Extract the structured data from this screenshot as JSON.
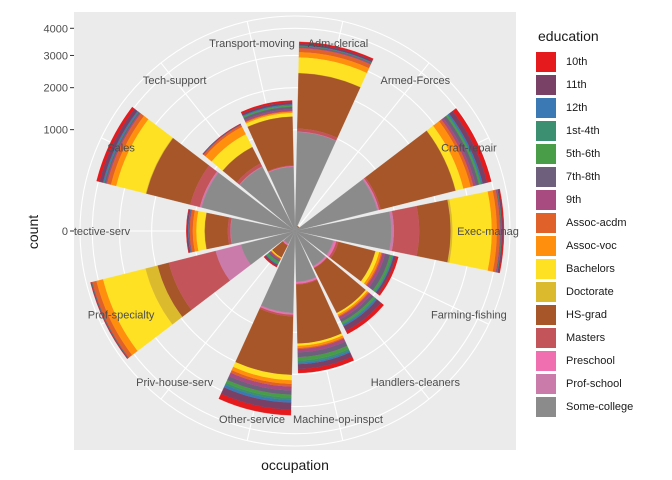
{
  "chart_data": {
    "type": "bar",
    "coord": "polar",
    "position": "stacked",
    "xlabel": "occupation",
    "ylabel": "count",
    "legend_title": "education",
    "legend_position": "right",
    "ylim": [
      0,
      4500
    ],
    "y_ticks": [
      0,
      1000,
      2000,
      3000,
      4000
    ],
    "grid": true,
    "categories": [
      "Adm-clerical",
      "Armed-Forces",
      "Craft-repair",
      "Exec-managerial",
      "Farming-fishing",
      "Handlers-cleaners",
      "Machine-op-inspct",
      "Other-service",
      "Priv-house-serv",
      "Prof-specialty",
      "Protective-serv",
      "Sales",
      "Tech-support",
      "Transport-moving"
    ],
    "category_labels": [
      "Adm-clerical",
      "Armed-Forces",
      "Craft-repair",
      "Exec-manag",
      "Farming-fishing",
      "Handlers-cleaners",
      "Machine-op-inspct",
      "Other-service",
      "Priv-house-serv",
      "Prof-specialty",
      "tective-serv",
      "Sales",
      "Tech-support",
      "Transport-moving"
    ],
    "series": [
      {
        "name": "10th",
        "color": "#E41A1C",
        "values": [
          70,
          0,
          170,
          50,
          50,
          80,
          110,
          200,
          10,
          20,
          15,
          120,
          10,
          50
        ]
      },
      {
        "name": "11th",
        "color": "#7A4166",
        "values": [
          70,
          0,
          175,
          45,
          50,
          110,
          130,
          240,
          10,
          25,
          25,
          140,
          10,
          50
        ]
      },
      {
        "name": "12th",
        "color": "#3A79B4",
        "values": [
          20,
          0,
          55,
          10,
          15,
          35,
          40,
          90,
          5,
          5,
          10,
          45,
          5,
          20
        ]
      },
      {
        "name": "1st-4th",
        "color": "#3C8F70",
        "values": [
          5,
          0,
          30,
          5,
          20,
          20,
          50,
          70,
          5,
          5,
          0,
          5,
          0,
          15
        ]
      },
      {
        "name": "5th-6th",
        "color": "#4A9D48",
        "values": [
          10,
          0,
          60,
          10,
          40,
          40,
          90,
          100,
          15,
          5,
          0,
          10,
          0,
          25
        ]
      },
      {
        "name": "7th-8th",
        "color": "#6E5F7C",
        "values": [
          30,
          0,
          120,
          30,
          90,
          60,
          110,
          130,
          10,
          10,
          15,
          60,
          5,
          60
        ]
      },
      {
        "name": "9th",
        "color": "#A74B81",
        "values": [
          30,
          0,
          90,
          20,
          50,
          50,
          80,
          120,
          10,
          10,
          10,
          40,
          5,
          40
        ]
      },
      {
        "name": "Assoc-acdm",
        "color": "#E0612A",
        "values": [
          140,
          0,
          100,
          120,
          20,
          20,
          25,
          80,
          0,
          170,
          60,
          150,
          50,
          15
        ]
      },
      {
        "name": "Assoc-voc",
        "color": "#FF8F0C",
        "values": [
          180,
          0,
          260,
          200,
          40,
          30,
          50,
          110,
          5,
          270,
          70,
          200,
          180,
          30
        ]
      },
      {
        "name": "Bachelors",
        "color": "#FEE123",
        "values": [
          500,
          0,
          260,
          1350,
          60,
          30,
          50,
          150,
          5,
          1500,
          150,
          1000,
          280,
          80
        ]
      },
      {
        "name": "Doctorate",
        "color": "#DBBA2E",
        "values": [
          10,
          0,
          10,
          60,
          5,
          5,
          0,
          5,
          0,
          360,
          5,
          20,
          5,
          5
        ]
      },
      {
        "name": "HS-grad",
        "color": "#A65628",
        "values": [
          1400,
          1,
          1900,
          850,
          470,
          650,
          950,
          1300,
          60,
          300,
          350,
          1150,
          300,
          850
        ]
      },
      {
        "name": "Masters",
        "color": "#C3555A",
        "values": [
          60,
          0,
          30,
          550,
          20,
          5,
          10,
          30,
          0,
          1000,
          35,
          200,
          50,
          10
        ]
      },
      {
        "name": "Preschool",
        "color": "#EF6FB0",
        "values": [
          5,
          0,
          10,
          0,
          15,
          10,
          15,
          20,
          5,
          0,
          0,
          5,
          0,
          5
        ]
      },
      {
        "name": "Prof-school",
        "color": "#CA7BAA",
        "values": [
          5,
          0,
          20,
          50,
          10,
          5,
          5,
          10,
          0,
          350,
          5,
          30,
          10,
          5
        ]
      },
      {
        "name": "Some-college",
        "color": "#8B8B8B",
        "values": [
          950,
          2,
          700,
          900,
          150,
          150,
          250,
          650,
          20,
          300,
          400,
          900,
          500,
          400
        ]
      }
    ]
  }
}
